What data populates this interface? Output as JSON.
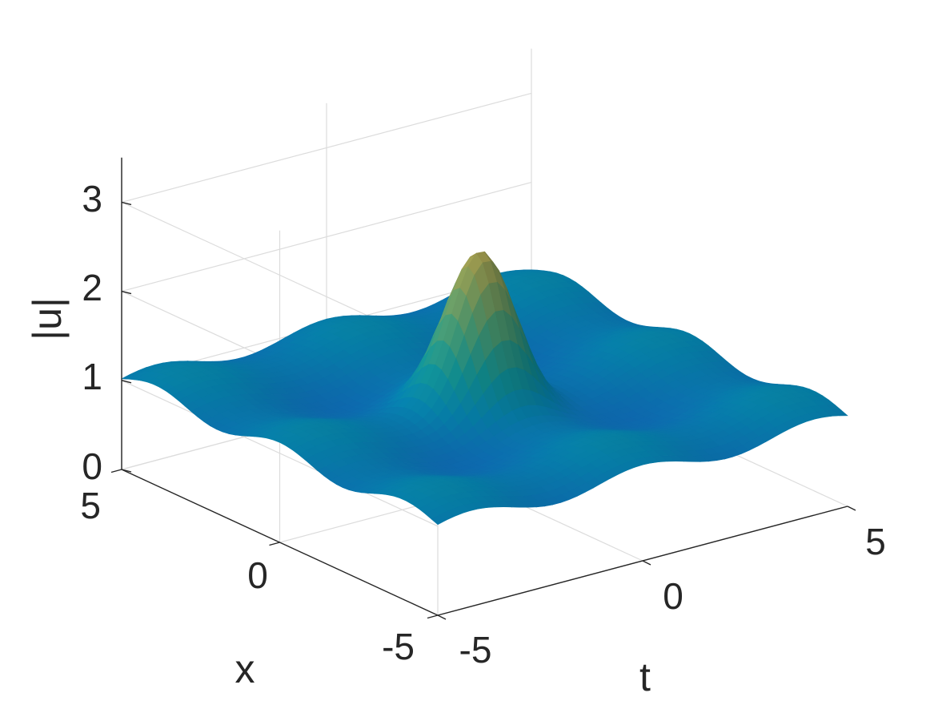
{
  "chart_data": {
    "type": "surface",
    "title": "",
    "xlabel": "x",
    "ylabel": "t",
    "zlabel": "|u|",
    "xlim": [
      -5,
      5
    ],
    "ylim": [
      -5,
      5
    ],
    "zlim": [
      0,
      3.5
    ],
    "x_ticks": [
      "-5",
      "0",
      "5"
    ],
    "y_ticks": [
      "-5",
      "0",
      "5"
    ],
    "z_ticks": [
      "0",
      "1",
      "2",
      "3"
    ],
    "grid": true,
    "colormap": "parula",
    "background_level": 1.0,
    "peak": {
      "x": 0,
      "t": 0,
      "value": 3.0
    },
    "dip": {
      "x": 0,
      "t": 0.5,
      "value": 0.3
    },
    "ripple_amplitude": 0.12,
    "colors": {
      "axis": "#262626",
      "grid": "#dcdcdc",
      "low": "#2a3a9c",
      "mid": "#0ea3c9",
      "high": "#f9d23b"
    }
  }
}
